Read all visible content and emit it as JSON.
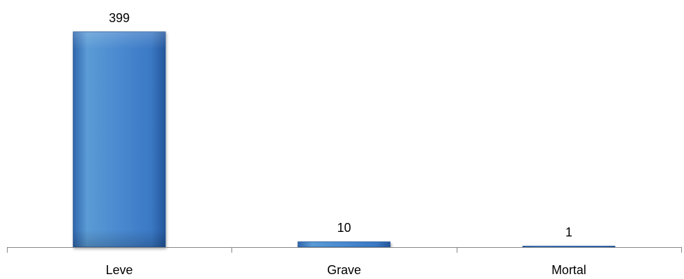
{
  "chart_data": {
    "type": "bar",
    "title": "",
    "xlabel": "",
    "ylabel": "",
    "categories": [
      "Leve",
      "Grave",
      "Mortal"
    ],
    "values": [
      399,
      10,
      1
    ],
    "data_labels": [
      "399",
      "10",
      "1"
    ],
    "ylim": [
      0,
      399
    ],
    "grid": false,
    "legend": "none",
    "colors": {
      "bar_fill_light": "#5b9bd5",
      "bar_fill": "#3a78c4",
      "bar_fill_dark": "#1f4f8e",
      "bar_stroke": "#2a5d9c",
      "axis": "#868686"
    }
  }
}
